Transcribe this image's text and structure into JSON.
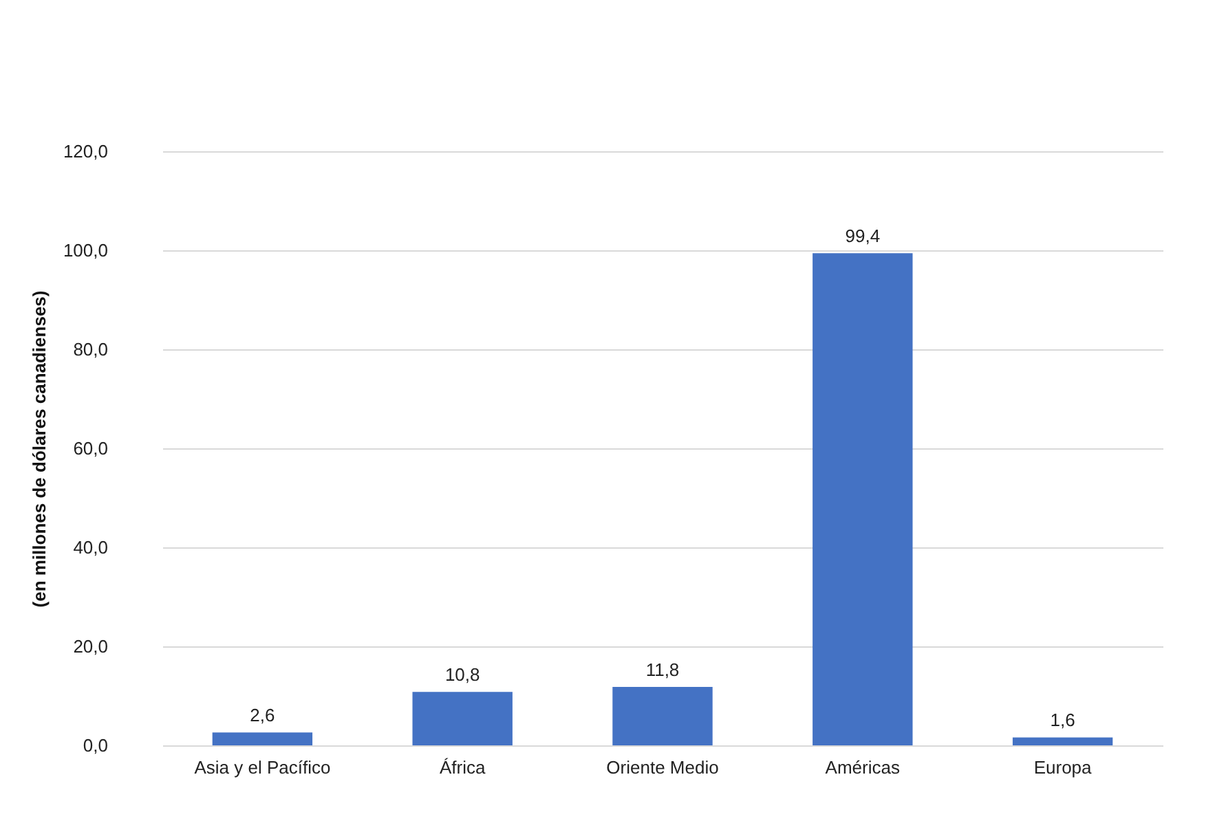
{
  "chart_data": {
    "type": "bar",
    "ylabel": "(en millones de dólares canadienses)",
    "categories": [
      "Asia y el Pacífico",
      "África",
      "Oriente Medio",
      "Américas",
      "Europa"
    ],
    "values": [
      2.6,
      10.8,
      11.8,
      99.4,
      1.6
    ],
    "value_labels": [
      "2,6",
      "10,8",
      "11,8",
      "99,4",
      "1,6"
    ],
    "color": "#4472c4",
    "ylim": [
      0,
      120
    ],
    "yticks": [
      {
        "value": 0,
        "label": "0,0"
      },
      {
        "value": 20,
        "label": "20,0"
      },
      {
        "value": 40,
        "label": "40,0"
      },
      {
        "value": 60,
        "label": "60,0"
      },
      {
        "value": 80,
        "label": "80,0"
      },
      {
        "value": 100,
        "label": "100,0"
      },
      {
        "value": 120,
        "label": "120,0"
      }
    ],
    "grid": "y"
  }
}
